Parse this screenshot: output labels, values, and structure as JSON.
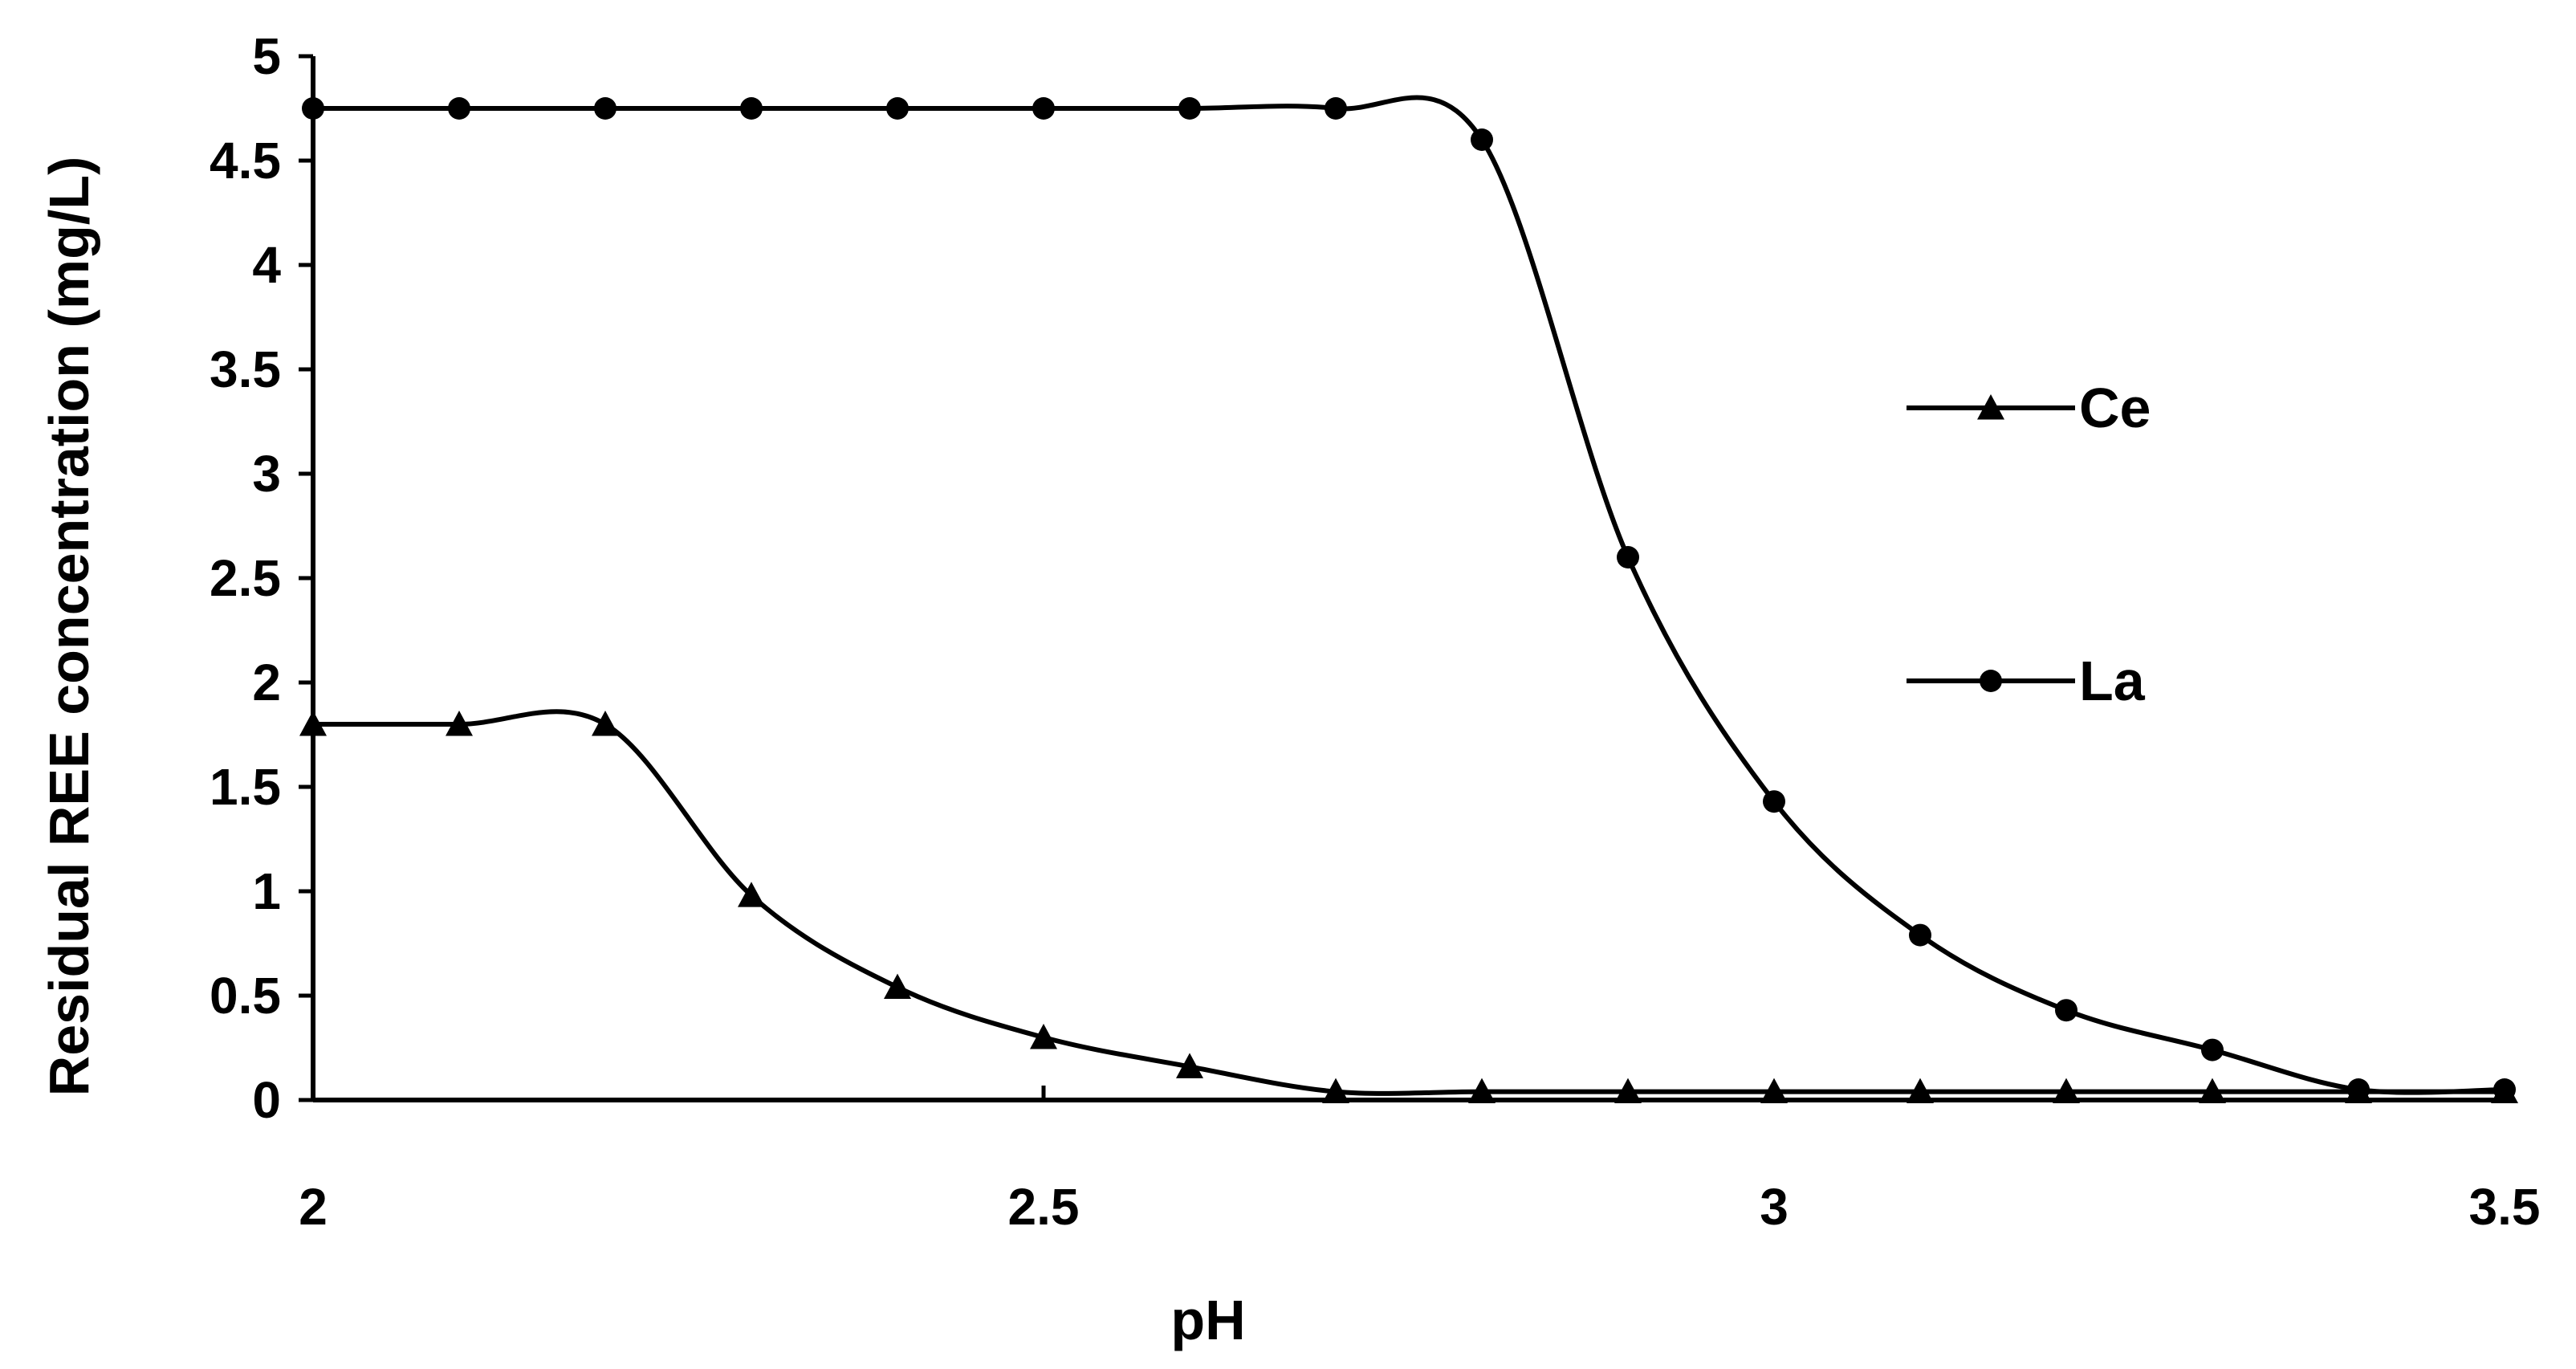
{
  "chart_data": {
    "type": "line",
    "title": "",
    "xlabel": "pH",
    "ylabel": "Residual REE concentration (mg/L)",
    "xlim": [
      2,
      3.5
    ],
    "ylim": [
      0,
      5
    ],
    "xticks": [
      "2",
      "2.5",
      "3",
      "3.5"
    ],
    "yticks": [
      "0",
      "0.5",
      "1",
      "1.5",
      "2",
      "2.5",
      "3",
      "3.5",
      "4",
      "4.5",
      "5"
    ],
    "smooth": true,
    "grid": false,
    "legend_position": "right",
    "series": [
      {
        "name": "Ce",
        "marker": "triangle",
        "color": "#000000",
        "x": [
          2.0,
          2.1,
          2.2,
          2.3,
          2.4,
          2.5,
          2.6,
          2.7,
          2.8,
          2.9,
          3.0,
          3.1,
          3.2,
          3.3,
          3.4,
          3.5
        ],
        "y": [
          1.8,
          1.8,
          1.8,
          0.98,
          0.54,
          0.3,
          0.16,
          0.04,
          0.04,
          0.04,
          0.04,
          0.04,
          0.04,
          0.04,
          0.04,
          0.04
        ]
      },
      {
        "name": "La",
        "marker": "circle",
        "color": "#000000",
        "x": [
          2.0,
          2.1,
          2.2,
          2.3,
          2.4,
          2.5,
          2.6,
          2.7,
          2.8,
          2.9,
          3.0,
          3.1,
          3.2,
          3.3,
          3.4,
          3.5
        ],
        "y": [
          4.75,
          4.75,
          4.75,
          4.75,
          4.75,
          4.75,
          4.75,
          4.75,
          4.6,
          2.6,
          1.43,
          0.79,
          0.43,
          0.24,
          0.05,
          0.05
        ]
      }
    ]
  }
}
